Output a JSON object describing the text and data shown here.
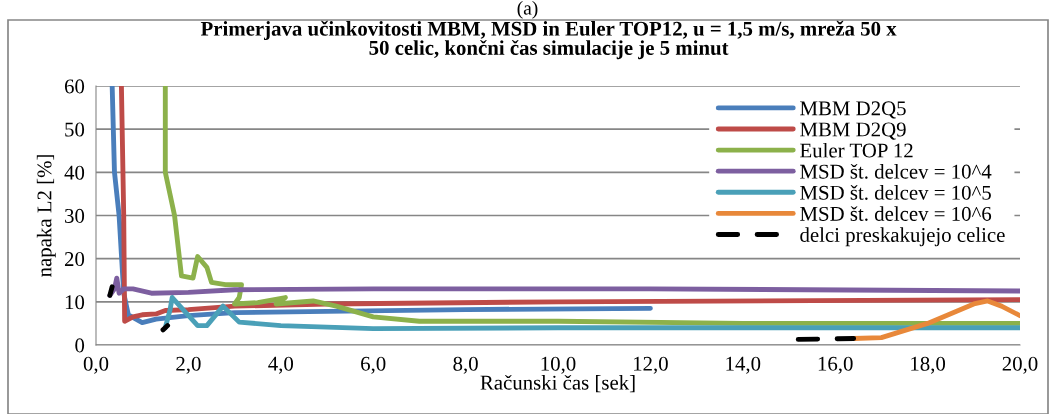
{
  "chart_data": {
    "type": "line",
    "title": "Primerjava učinkovitosti MBM, MSD in Euler TOP12, u = 1,5 m/s, mreža 50 x\n50 celic, končni čas simulacije je 5 minut",
    "xlabel": "Računski čas [sek]",
    "ylabel": "napaka L2 [%]",
    "annotations": [
      "(a)"
    ],
    "xlim": [
      0,
      20
    ],
    "xticks": [
      {
        "value": 0,
        "label": "0,0"
      },
      {
        "value": 2,
        "label": "2,0"
      },
      {
        "value": 4,
        "label": "4,0"
      },
      {
        "value": 6,
        "label": "6,0"
      },
      {
        "value": 8,
        "label": "8,0"
      },
      {
        "value": 10,
        "label": "10,0"
      },
      {
        "value": 12,
        "label": "12,0"
      },
      {
        "value": 14,
        "label": "14,0"
      },
      {
        "value": 16,
        "label": "16,0"
      },
      {
        "value": 18,
        "label": "18,0"
      },
      {
        "value": 20,
        "label": "20,0"
      }
    ],
    "ylim": [
      0,
      60
    ],
    "yticks": [
      0,
      10,
      20,
      30,
      40,
      50,
      60
    ],
    "grid": "y",
    "legend": "top right",
    "marker": "none",
    "series": [
      {
        "name": "MBM D2Q5",
        "color": "#4a7ebb",
        "x": [
          0.35,
          0.4,
          0.5,
          0.6,
          0.7,
          1.0,
          1.3,
          2,
          3,
          5,
          8,
          12
        ],
        "values": [
          60,
          40,
          30,
          12,
          7,
          5.2,
          6,
          6.8,
          7.5,
          7.8,
          8.2,
          8.5
        ]
      },
      {
        "name": "MBM D2Q9",
        "color": "#be4b48",
        "x": [
          0.55,
          0.6,
          0.62,
          0.8,
          1.0,
          1.3,
          1.5,
          2,
          3,
          5,
          10,
          20
        ],
        "values": [
          60,
          30,
          5.5,
          6.5,
          7,
          7.2,
          8,
          8.2,
          9,
          9.5,
          10,
          10.5
        ]
      },
      {
        "name": "Euler TOP 12",
        "color": "#8cb14b",
        "x": [
          1.5,
          1.5,
          1.7,
          1.85,
          2.1,
          2.2,
          2.4,
          2.5,
          2.8,
          3.15,
          3.1,
          3.0,
          3.5,
          4.1,
          3.9,
          4.7,
          5.2,
          6,
          7,
          10,
          14,
          20
        ],
        "values": [
          60,
          40,
          30,
          16,
          15.5,
          20.5,
          18,
          14.5,
          14,
          14,
          11,
          9.5,
          9.8,
          11,
          9.5,
          10.2,
          9,
          6.5,
          5.5,
          5.5,
          5,
          5
        ]
      },
      {
        "name": "MSD št. delcev = 10^4",
        "color": "#7d5fa0",
        "x": [
          0.3,
          0.4,
          0.45,
          0.5,
          0.6,
          0.8,
          1.2,
          2,
          3,
          6,
          12,
          20
        ],
        "values": [
          11.5,
          13,
          15.5,
          12,
          13,
          13,
          12,
          12.2,
          12.8,
          13,
          13,
          12.5
        ]
      },
      {
        "name": "MSD št. delcev = 10^5",
        "color": "#4aa0b8",
        "x": [
          1.5,
          1.6,
          1.65,
          2.2,
          2.4,
          2.75,
          3.1,
          4,
          6,
          10,
          20
        ],
        "values": [
          4,
          8,
          11,
          4.5,
          4.5,
          9,
          5.3,
          4.5,
          3.8,
          4,
          4
        ]
      },
      {
        "name": "MSD št. delcev = 10^6",
        "color": "#e8883a",
        "x": [
          16.4,
          17,
          18,
          19,
          19.3,
          19.6,
          20
        ],
        "values": [
          1.5,
          1.7,
          5,
          9.5,
          10.2,
          9,
          6.8
        ]
      },
      {
        "name": "delci preskakujejo celice",
        "color": "#000000",
        "line_style": "dashed",
        "x": [
          0.3,
          0.35,
          null,
          1.45,
          1.55,
          null,
          15.2,
          16.4
        ],
        "values": [
          11.5,
          13.5,
          null,
          3.5,
          4.5,
          null,
          1.3,
          1.5
        ]
      }
    ]
  }
}
